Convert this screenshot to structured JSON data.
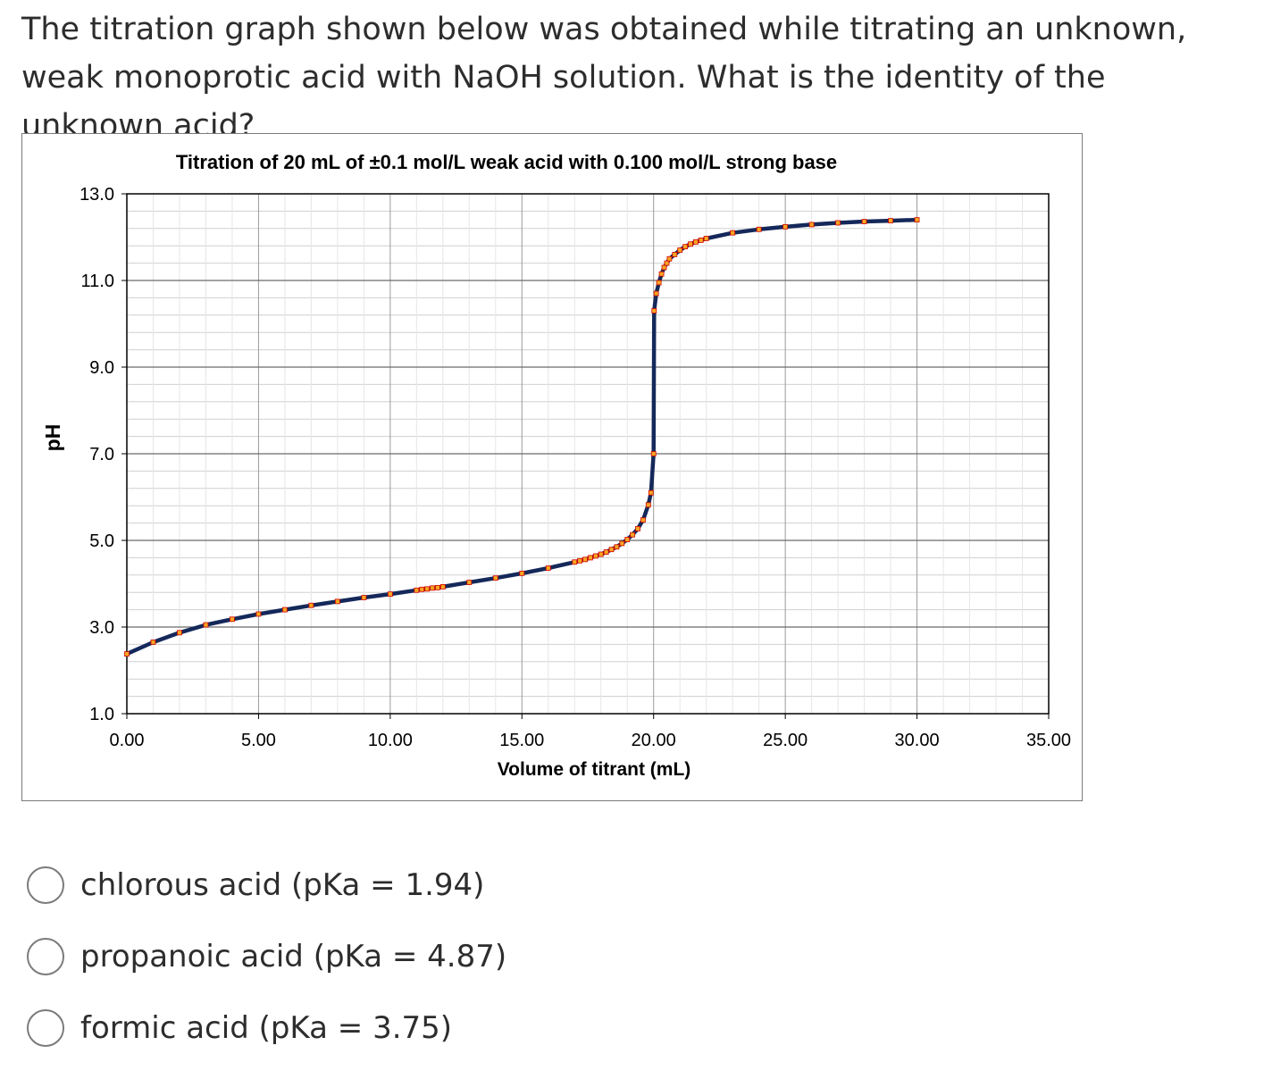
{
  "question": "The titration graph shown below was obtained while titrating an unknown, weak monoprotic acid with NaOH solution. What is the identity of the unknown acid?",
  "chart_data": {
    "type": "line",
    "title": "Titration of  20 mL of  ±0.1 mol/L weak acid with 0.100 mol/L strong base",
    "xlabel": "Volume of titrant (mL)",
    "ylabel": "pH",
    "xlim": [
      0,
      35
    ],
    "ylim": [
      1,
      13
    ],
    "x_ticks": [
      "0.00",
      "5.00",
      "10.00",
      "15.00",
      "20.00",
      "25.00",
      "30.00",
      "35.00"
    ],
    "y_ticks": [
      "13.0",
      "11.0",
      "9.0",
      "7.0",
      "5.0",
      "3.0",
      "1.0"
    ],
    "grid": true,
    "line_color": "#14285a",
    "marker_color": "#f5a623",
    "marker_edge_color": "#d40000",
    "series": [
      {
        "x": [
          0,
          1,
          2,
          3,
          4,
          5,
          6,
          7,
          8,
          9,
          10,
          11,
          11.2,
          11.4,
          11.6,
          11.8,
          12,
          13,
          14,
          15,
          16,
          17,
          17.2,
          17.4,
          17.6,
          17.8,
          18,
          18.2,
          18.4,
          18.6,
          18.8,
          19,
          19.2,
          19.4,
          19.6,
          19.8,
          19.9,
          20,
          20.02,
          20.1,
          20.2,
          20.3,
          20.4,
          20.5,
          20.6,
          20.8,
          21,
          21.2,
          21.4,
          21.6,
          21.8,
          22,
          23,
          24,
          25,
          26,
          27,
          28,
          29,
          30
        ],
        "y": [
          2.38,
          2.65,
          2.87,
          3.05,
          3.18,
          3.3,
          3.4,
          3.5,
          3.59,
          3.68,
          3.76,
          3.85,
          3.87,
          3.88,
          3.9,
          3.91,
          3.93,
          4.03,
          4.13,
          4.24,
          4.36,
          4.5,
          4.53,
          4.56,
          4.6,
          4.64,
          4.68,
          4.73,
          4.79,
          4.85,
          4.93,
          5.02,
          5.13,
          5.27,
          5.47,
          5.82,
          6.1,
          7.0,
          10.3,
          10.7,
          10.95,
          11.15,
          11.3,
          11.4,
          11.5,
          11.6,
          11.7,
          11.78,
          11.84,
          11.89,
          11.93,
          11.97,
          12.1,
          12.18,
          12.24,
          12.29,
          12.33,
          12.36,
          12.38,
          12.4
        ]
      }
    ]
  },
  "choices": [
    {
      "label": "chlorous acid (pKa = 1.94)"
    },
    {
      "label": "propanoic acid (pKa = 4.87)"
    },
    {
      "label": "formic acid (pKa = 3.75)"
    }
  ]
}
